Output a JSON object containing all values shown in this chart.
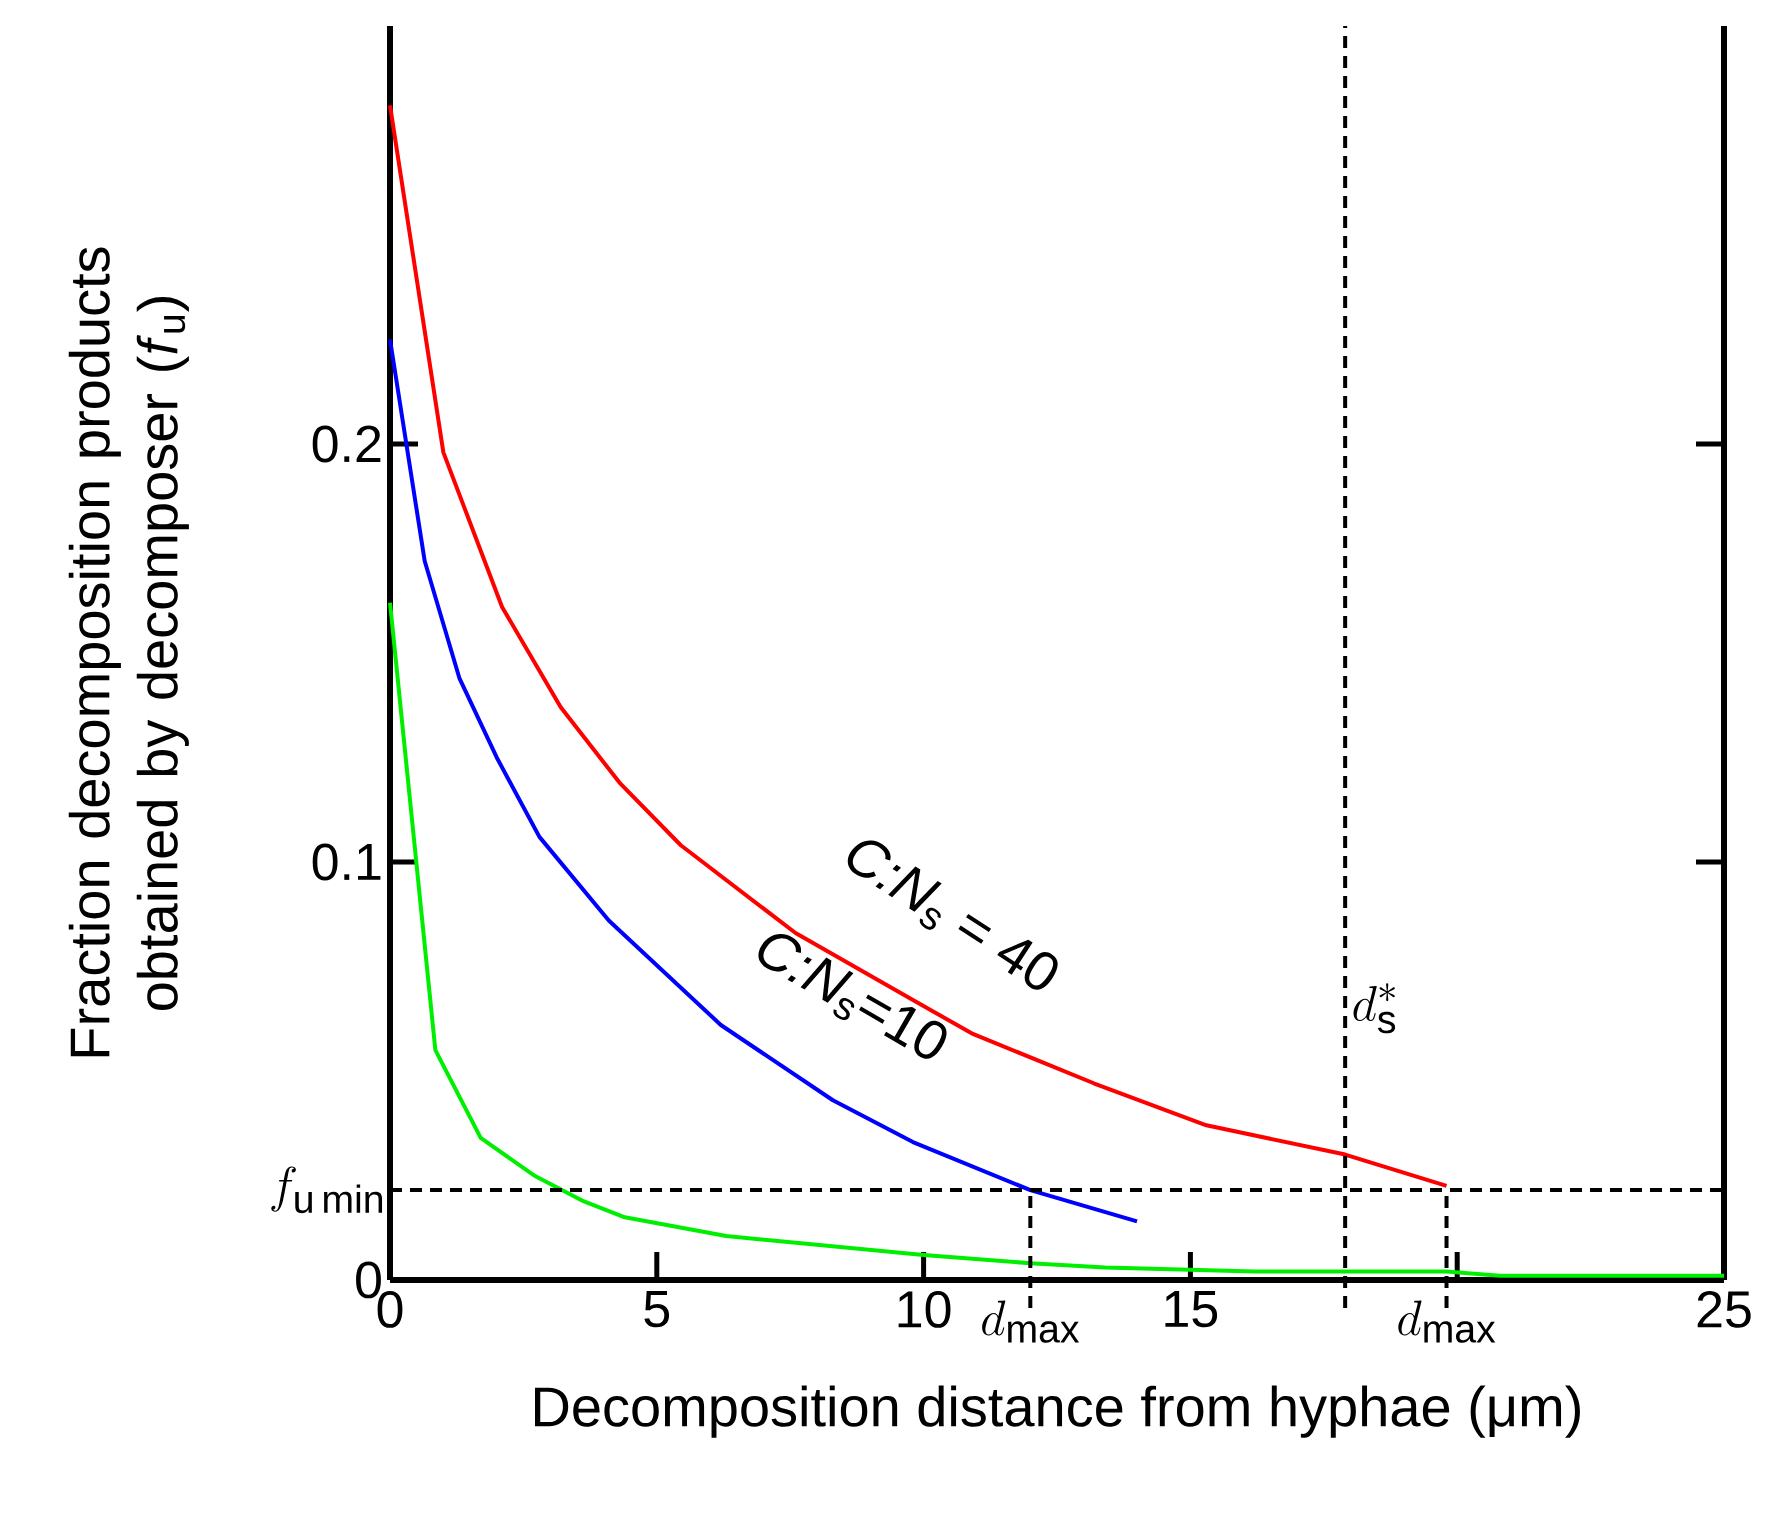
{
  "chart_data": {
    "type": "line",
    "xlabel": "Decomposition distance from hyphae (μm)",
    "ylabel": "Fraction decomposition products obtained by decomposer (*f*$_{u}$)",
    "xlim": [
      0,
      25
    ],
    "ylim": [
      0,
      0.3
    ],
    "xticks": [
      0,
      5,
      10,
      15,
      {
        "value": 20,
        "label": null
      },
      25
    ],
    "yticks": [
      0,
      0.1,
      0.2
    ],
    "grid": false,
    "marker": "none",
    "line_style": "solid",
    "series": [
      {
        "color": "#ff0000",
        "x": [
          0,
          1.0,
          2.1,
          3.2,
          4.3,
          5.45,
          7.6,
          9.8,
          10.9,
          13.2,
          15.3,
          17.9,
          19.8
        ],
        "values": [
          0.281,
          0.198,
          0.161,
          0.137,
          0.119,
          0.104,
          0.083,
          0.067,
          0.059,
          0.047,
          0.037,
          0.03,
          0.0225
        ]
      },
      {
        "color": "#0000ff",
        "x": [
          0,
          0.65,
          1.3,
          2.0,
          2.8,
          4.1,
          6.2,
          8.3,
          9.8,
          12.0,
          14.0
        ],
        "values": [
          0.225,
          0.172,
          0.144,
          0.125,
          0.106,
          0.086,
          0.061,
          0.043,
          0.033,
          0.0215,
          0.014
        ]
      },
      {
        "color": "#00ee00",
        "x": [
          0,
          0.85,
          1.7,
          2.7,
          3.6,
          4.4,
          6.3,
          10.0,
          12.0,
          13.4,
          16.2,
          19.8,
          20.8,
          25
        ],
        "values": [
          0.162,
          0.055,
          0.034,
          0.025,
          0.019,
          0.015,
          0.0105,
          0.006,
          0.004,
          0.003,
          0.002,
          0.002,
          0.001,
          0.001
        ]
      }
    ],
    "ref_lines": [
      {
        "axis": "y",
        "value": 0.0215,
        "label": "f_{\\mathrm{u\\,min}}",
        "line_style": "dashed"
      },
      {
        "axis": "x",
        "value": 12.0,
        "label": "d_{\\mathrm{max}}",
        "line_style": "dashed"
      },
      {
        "axis": "x",
        "value": 17.9,
        "label": "d_{\\mathrm{s}}^{*}",
        "line_style": "dashed"
      },
      {
        "axis": "x",
        "value": 19.8,
        "label": "d_{\\mathrm{max}}",
        "line_style": "dashed"
      }
    ],
    "annotations": [
      "*C:N*$_{s}$ = 40",
      "*C:N*$_{s}$=10"
    ]
  }
}
